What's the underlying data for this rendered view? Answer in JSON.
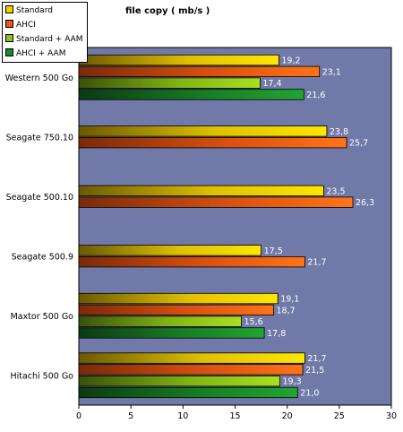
{
  "title": "file copy ( mb/s )",
  "legend": [
    {
      "label": "Standard",
      "color": "#f2d000"
    },
    {
      "label": "AHCI",
      "color": "#e85a10"
    },
    {
      "label": "Standard + AAM",
      "color": "#8ec21a"
    },
    {
      "label": "AHCI + AAM",
      "color": "#1a8a2a"
    }
  ],
  "colors": {
    "plot_bg": "#7079a8",
    "value_label": "#ffffff"
  },
  "chart_data": {
    "type": "bar",
    "orientation": "horizontal",
    "title": "file copy ( mb/s )",
    "categories": [
      "Western 500 Go",
      "Seagate 750.10",
      "Seagate 500.10",
      "Seagate 500.9",
      "Maxtor 500 Go",
      "Hitachi 500 Go"
    ],
    "series": [
      {
        "name": "Standard",
        "values": [
          19.2,
          23.8,
          23.5,
          17.5,
          19.1,
          21.7
        ],
        "labels": [
          "19,2",
          "23,8",
          "23,5",
          "17,5",
          "19,1",
          "21,7"
        ]
      },
      {
        "name": "AHCI",
        "values": [
          23.1,
          25.7,
          26.3,
          21.7,
          18.7,
          21.5
        ],
        "labels": [
          "23,1",
          "25,7",
          "26,3",
          "21,7",
          "18,7",
          "21,5"
        ]
      },
      {
        "name": "Standard + AAM",
        "values": [
          17.4,
          null,
          null,
          null,
          15.6,
          19.3
        ],
        "labels": [
          "17,4",
          "",
          "",
          "",
          "15,6",
          "19,3"
        ]
      },
      {
        "name": "AHCI + AAM",
        "values": [
          21.6,
          null,
          null,
          null,
          17.8,
          21.0
        ],
        "labels": [
          "21,6",
          "",
          "",
          "",
          "17,8",
          "21,0"
        ]
      }
    ],
    "xlim": [
      0,
      30
    ],
    "xticks": [
      "0",
      "5",
      "10",
      "15",
      "20",
      "25",
      "30"
    ],
    "grid": false,
    "legend_position": "top-left"
  }
}
